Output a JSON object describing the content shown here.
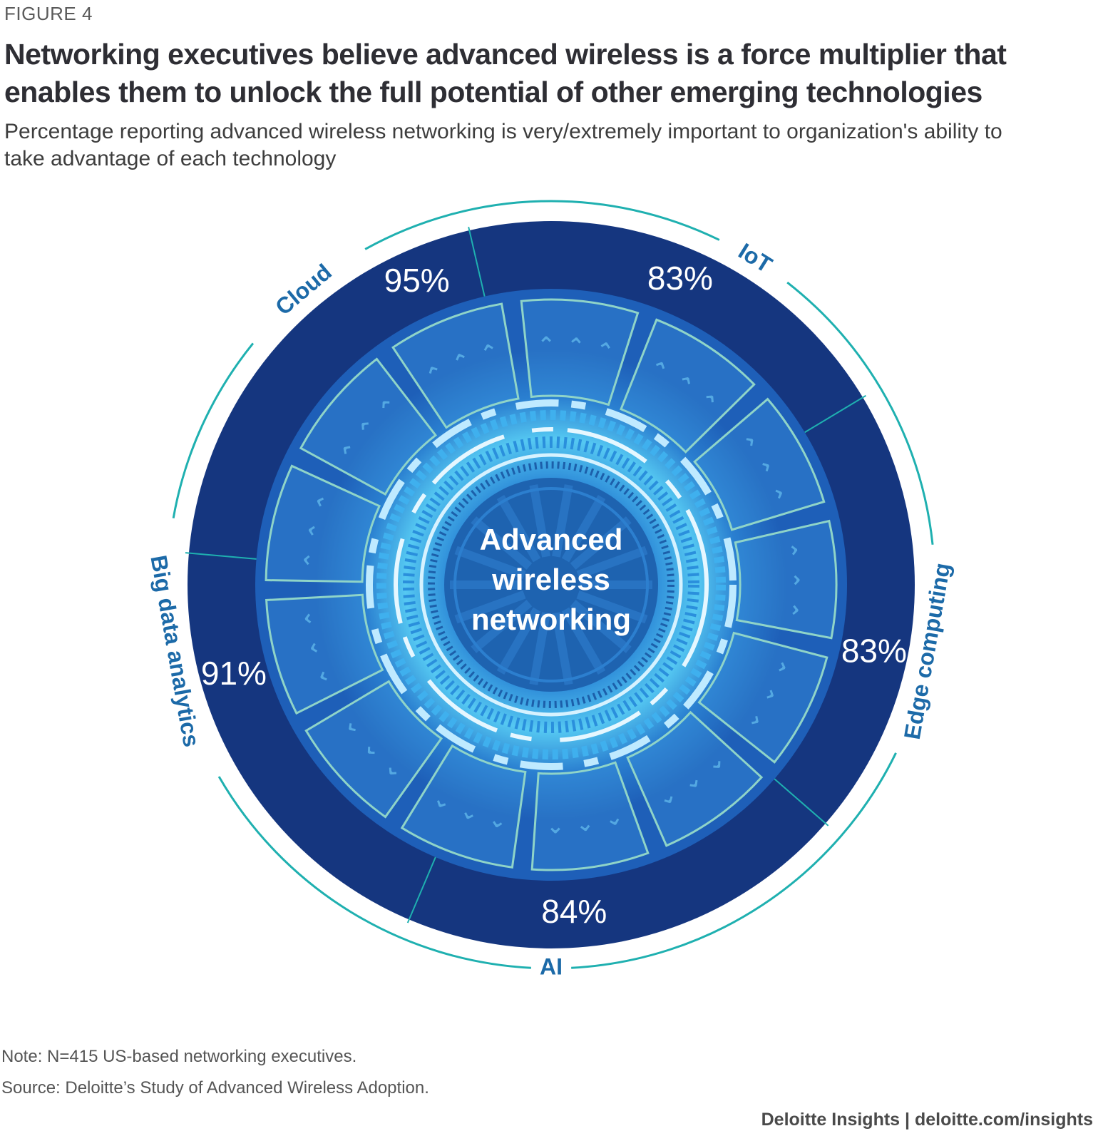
{
  "figure_label": "FIGURE 4",
  "colors": {
    "outer_ring": "#15367f",
    "ring_border": "#1fb0b0",
    "label_text": "#1c6aa8",
    "inner_disc": "#1e5fb8",
    "glow": "#2fa8e8",
    "center": "#1e63b0"
  },
  "chart_data": {
    "type": "radial",
    "title": "Networking executives believe advanced wireless is a force multiplier that enables them to unlock the full potential of other emerging technologies",
    "subtitle": "Percentage reporting advanced wireless networking is very/extremely important to organization's ability to take advantage of each technology",
    "center_label": [
      "Advanced",
      "wireless",
      "networking"
    ],
    "unit": "%",
    "categories": [
      "Cloud",
      "IoT",
      "Edge computing",
      "AI",
      "Big data analytics"
    ],
    "values": [
      95,
      83,
      83,
      84,
      91
    ],
    "value_labels": [
      "95%",
      "83%",
      "83%",
      "84%",
      "91%"
    ]
  },
  "footer": {
    "note": "Note: N=415 US-based networking executives.",
    "source": "Source: Deloitte’s Study of Advanced Wireless Adoption.",
    "brand": "Deloitte Insights | deloitte.com/insights"
  }
}
